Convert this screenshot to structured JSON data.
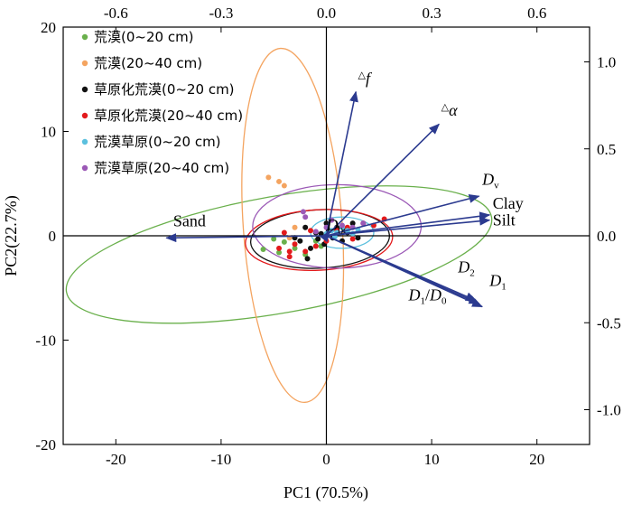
{
  "chart_data": {
    "type": "scatter",
    "title": "",
    "xlabel": "PC1 (70.5%)",
    "ylabel": "PC2(22.7%)",
    "xlim": [
      -25,
      25
    ],
    "ylim": [
      -20,
      20
    ],
    "x_ticks": [
      -20,
      -10,
      0,
      10,
      20
    ],
    "y_ticks": [
      -20,
      -10,
      0,
      10,
      20
    ],
    "x_tick_labels": [
      "-20",
      "-10",
      "0",
      "10",
      "20"
    ],
    "y_tick_labels": [
      "-20",
      "-10",
      "0",
      "10",
      "20"
    ],
    "top_ticks": [
      -0.6,
      -0.3,
      0.0,
      0.3,
      0.6
    ],
    "top_tick_labels": [
      "-0.6",
      "-0.3",
      "0.0",
      "0.3",
      "0.6"
    ],
    "right_ticks": [
      -1.0,
      -0.5,
      0.0,
      0.5,
      1.0
    ],
    "right_tick_labels": [
      "-1.0",
      "-0.5",
      "0.0",
      "0.5",
      "1.0"
    ],
    "legend_position": "top-left",
    "grid": false,
    "arrow_color": "#2b3a8f",
    "series": [
      {
        "name": "荒漠(0~20 cm)",
        "color": "#6ab04c",
        "points": [
          [
            -6,
            -1.3
          ],
          [
            -5,
            -0.3
          ],
          [
            -4.5,
            -1.6
          ],
          [
            -4,
            -0.6
          ],
          [
            -3,
            -1.2
          ],
          [
            -2,
            -1.8
          ],
          [
            -1,
            -0.5
          ],
          [
            -0.5,
            -1.0
          ]
        ],
        "ellipse": {
          "cx": -4.5,
          "cy": -1.8,
          "rx": 20.5,
          "ry": 5.6,
          "angle": -10
        }
      },
      {
        "name": "荒漠(20~40 cm)",
        "color": "#f4a460",
        "points": [
          [
            -5.5,
            5.6
          ],
          [
            -4.5,
            5.2
          ],
          [
            -4,
            4.8
          ],
          [
            -3,
            0.8
          ],
          [
            -3.5,
            -0.2
          ]
        ],
        "ellipse": {
          "cx": -3.2,
          "cy": 1.0,
          "rx": 4.7,
          "ry": 17.0,
          "angle": -4
        }
      },
      {
        "name": "草原化荒漠(0~20 cm)",
        "color": "#111111",
        "points": [
          [
            -2.5,
            -0.5
          ],
          [
            -2,
            0.8
          ],
          [
            -1.5,
            -1.2
          ],
          [
            -1,
            0.3
          ],
          [
            -0.8,
            -0.3
          ],
          [
            -0.2,
            -0.8
          ],
          [
            0.3,
            0.5
          ],
          [
            0.6,
            -0.2
          ],
          [
            1,
            0.8
          ],
          [
            1.5,
            -0.5
          ],
          [
            2,
            0.3
          ],
          [
            2.5,
            1.2
          ],
          [
            3,
            -0.2
          ],
          [
            -1.8,
            -2.2
          ],
          [
            -3,
            -0.2
          ],
          [
            0,
            1.2
          ],
          [
            1.8,
            0.5
          ],
          [
            -0.5,
            0.2
          ]
        ],
        "ellipse": {
          "cx": -0.6,
          "cy": -0.3,
          "rx": 6.6,
          "ry": 2.8,
          "angle": -3
        }
      },
      {
        "name": "草原化荒漠(20~40 cm)",
        "color": "#e31a1c",
        "points": [
          [
            -4.5,
            -1.2
          ],
          [
            -4,
            0.3
          ],
          [
            -3.5,
            -2
          ],
          [
            -3,
            -0.8
          ],
          [
            -2,
            -1.5
          ],
          [
            -1.5,
            0.5
          ],
          [
            -1,
            -1
          ],
          [
            0,
            -0.5
          ],
          [
            1,
            0.5
          ],
          [
            2,
            0.8
          ],
          [
            3.5,
            1.2
          ],
          [
            4.5,
            1.0
          ],
          [
            5.5,
            1.6
          ],
          [
            -3.5,
            -1.5
          ],
          [
            2.5,
            -0.3
          ]
        ],
        "ellipse": {
          "cx": -0.7,
          "cy": -0.4,
          "rx": 7.0,
          "ry": 2.9,
          "angle": -3
        }
      },
      {
        "name": "荒漠草原(0~20 cm)",
        "color": "#5bc0de",
        "points": [
          [
            0,
            0.2
          ],
          [
            0.5,
            0.5
          ],
          [
            1,
            0.3
          ],
          [
            1.5,
            0.8
          ],
          [
            2,
            0.5
          ],
          [
            2.5,
            0.2
          ],
          [
            3,
            0.6
          ],
          [
            0.8,
            -0.1
          ]
        ],
        "ellipse": {
          "cx": 1.5,
          "cy": 0.3,
          "rx": 3.0,
          "ry": 1.5,
          "angle": 0
        }
      },
      {
        "name": "荒漠草原(20~40 cm)",
        "color": "#9b59b6",
        "points": [
          [
            -2.2,
            2.3
          ],
          [
            -2,
            1.8
          ],
          [
            0.5,
            1.5
          ],
          [
            1.5,
            1.0
          ],
          [
            2.5,
            0.8
          ],
          [
            3.5,
            1.2
          ],
          [
            -1,
            0.4
          ],
          [
            0,
            0.8
          ]
        ],
        "ellipse": {
          "cx": 1.0,
          "cy": 0.9,
          "rx": 8.0,
          "ry": 4.0,
          "angle": 0
        }
      }
    ],
    "vectors": [
      {
        "label": "Sand",
        "x": -15.2,
        "y": -0.2,
        "label_x": -13,
        "label_y": 0.9,
        "anchor": "middle"
      },
      {
        "label": "Silt",
        "x": 15.5,
        "y": 1.5,
        "label_x": 15.8,
        "label_y": 1.0,
        "anchor": "start"
      },
      {
        "label": "Clay",
        "x": 15.5,
        "y": 2.0,
        "label_x": 15.8,
        "label_y": 2.6,
        "anchor": "start"
      },
      {
        "label": "D_v",
        "x": 14.5,
        "y": 3.8,
        "label_x": 14.8,
        "label_y": 4.9,
        "anchor": "start"
      },
      {
        "label": "Δα",
        "x": 10.7,
        "y": 10.7,
        "label_x": 10.9,
        "label_y": 11.5,
        "anchor": "start"
      },
      {
        "label": "Δf",
        "x": 2.8,
        "y": 13.8,
        "label_x": 3.0,
        "label_y": 14.6,
        "anchor": "start"
      },
      {
        "label": "D_1",
        "x": 14.8,
        "y": -6.8,
        "label_x": 15.5,
        "label_y": -4.8,
        "anchor": "start"
      },
      {
        "label": "D_2",
        "x": 14.5,
        "y": -6.5,
        "label_x": 12.5,
        "label_y": -3.5,
        "anchor": "start"
      },
      {
        "label": "D_1/D_0",
        "x": 14.2,
        "y": -6.2,
        "label_x": 7.8,
        "label_y": -6.2,
        "anchor": "start"
      },
      {
        "label": "D_0",
        "x": 0.3,
        "y": 0.4,
        "label_x": 0.0,
        "label_y": 0.5,
        "anchor": "start"
      }
    ]
  }
}
